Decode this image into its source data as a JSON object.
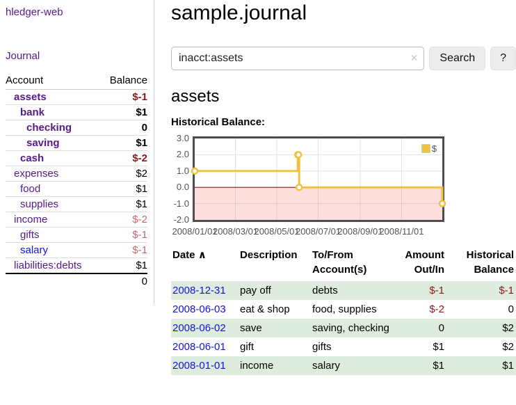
{
  "sidebar": {
    "app_title": "hledger-web",
    "journal_label": "Journal",
    "accounts_header": {
      "account": "Account",
      "balance": "Balance"
    },
    "accounts": [
      {
        "name": "assets",
        "indent": 0,
        "bold": true,
        "link": "purple",
        "balance": "$-1",
        "balance_class": "neg-dark"
      },
      {
        "name": "bank",
        "indent": 1,
        "bold": true,
        "link": "purple",
        "balance": "$1",
        "balance_class": ""
      },
      {
        "name": "checking",
        "indent": 2,
        "bold": true,
        "link": "purple",
        "balance": "0",
        "balance_class": ""
      },
      {
        "name": "saving",
        "indent": 2,
        "bold": true,
        "link": "purple",
        "balance": "$1",
        "balance_class": ""
      },
      {
        "name": "cash",
        "indent": 1,
        "bold": true,
        "link": "purple",
        "balance": "$-2",
        "balance_class": "neg-dark"
      },
      {
        "name": "expenses",
        "indent": 0,
        "bold": false,
        "link": "purple",
        "balance": "$2",
        "balance_class": ""
      },
      {
        "name": "food",
        "indent": 1,
        "bold": false,
        "link": "purple",
        "balance": "$1",
        "balance_class": ""
      },
      {
        "name": "supplies",
        "indent": 1,
        "bold": false,
        "link": "purple",
        "balance": "$1",
        "balance_class": ""
      },
      {
        "name": "income",
        "indent": 0,
        "bold": false,
        "link": "purple",
        "balance": "$-2",
        "balance_class": "neg-light"
      },
      {
        "name": "gifts",
        "indent": 1,
        "bold": false,
        "link": "purple",
        "balance": "$-1",
        "balance_class": "neg-light"
      },
      {
        "name": "salary",
        "indent": 1,
        "bold": false,
        "link": "blue",
        "balance": "$-1",
        "balance_class": "neg-light"
      },
      {
        "name": "liabilities:debts",
        "indent": 0,
        "bold": false,
        "link": "purple",
        "balance": "$1",
        "balance_class": ""
      }
    ],
    "total": "0"
  },
  "main": {
    "title": "sample.journal",
    "search": {
      "value": "inacct:assets",
      "clear_icon": "✕",
      "button_label": "Search",
      "help_label": "?"
    },
    "account_heading": "assets",
    "chart_label": "Historical Balance:"
  },
  "register": {
    "headers": {
      "date": "Date",
      "description": "Description",
      "accounts": "To/From Account(s)",
      "amount": "Amount Out/In",
      "balance": "Historical Balance"
    },
    "sort_icon": "∧",
    "rows": [
      {
        "date": "2008-12-31",
        "description": "pay off",
        "accounts": "debts",
        "amount": "$-1",
        "amount_negative": true,
        "balance": "$-1",
        "balance_negative": true
      },
      {
        "date": "2008-06-03",
        "description": "eat & shop",
        "accounts": "food, supplies",
        "amount": "$-2",
        "amount_negative": true,
        "balance": "0",
        "balance_negative": false
      },
      {
        "date": "2008-06-02",
        "description": "save",
        "accounts": "saving, checking",
        "amount": "0",
        "amount_negative": false,
        "balance": "$2",
        "balance_negative": false
      },
      {
        "date": "2008-06-01",
        "description": "gift",
        "accounts": "gifts",
        "amount": "$1",
        "amount_negative": false,
        "balance": "$2",
        "balance_negative": false
      },
      {
        "date": "2008-01-01",
        "description": "income",
        "accounts": "salary",
        "amount": "$1",
        "amount_negative": false,
        "balance": "$1",
        "balance_negative": false
      }
    ]
  },
  "chart_data": {
    "type": "line",
    "title": "Historical Balance:",
    "style": "steps-with-markers",
    "series": [
      {
        "name": "$",
        "color": "#edc240",
        "points": [
          [
            "2008-01-01",
            1
          ],
          [
            "2008-06-01",
            2
          ],
          [
            "2008-06-02",
            2
          ],
          [
            "2008-06-03",
            0
          ],
          [
            "2008-12-31",
            -1
          ]
        ]
      }
    ],
    "x_range": [
      "2008-01-01",
      "2008-12-31"
    ],
    "x_ticks": [
      {
        "date": "2008-01-01",
        "label": "2008/01/01"
      },
      {
        "date": "2008-03-01",
        "label": "2008/03/01"
      },
      {
        "date": "2008-05-01",
        "label": "2008/05/01"
      },
      {
        "date": "2008-07-01",
        "label": "2008/07/01"
      },
      {
        "date": "2008-09-01",
        "label": "2008/09/01"
      },
      {
        "date": "2008-11-01",
        "label": "2008/11/01"
      }
    ],
    "ylim": [
      -2,
      3
    ],
    "y_ticks": [
      {
        "value": 3,
        "label": "3.0"
      },
      {
        "value": 2,
        "label": "2.0"
      },
      {
        "value": 1,
        "label": "1.0"
      },
      {
        "value": 0,
        "label": "0.0"
      },
      {
        "value": -1,
        "label": "-1.0"
      },
      {
        "value": -2,
        "label": "-2.0"
      }
    ],
    "grid": true,
    "legend_position": "top-right",
    "negative_region_shaded": true
  },
  "colors": {
    "link-purple": "#551a8b",
    "link-blue": "#1414e0",
    "negative-dark": "#8b1717",
    "negative-light": "#c0696d",
    "row-green": "#ddecdc",
    "chart-line": "#edc240",
    "chart-negative-fill": "rgba(255,70,70,0.18)",
    "chart-zero-line": "#7f0000",
    "chart-grid": "#e2e2e2",
    "chart-border": "#4d4d4d",
    "chart-text": "#545454"
  }
}
